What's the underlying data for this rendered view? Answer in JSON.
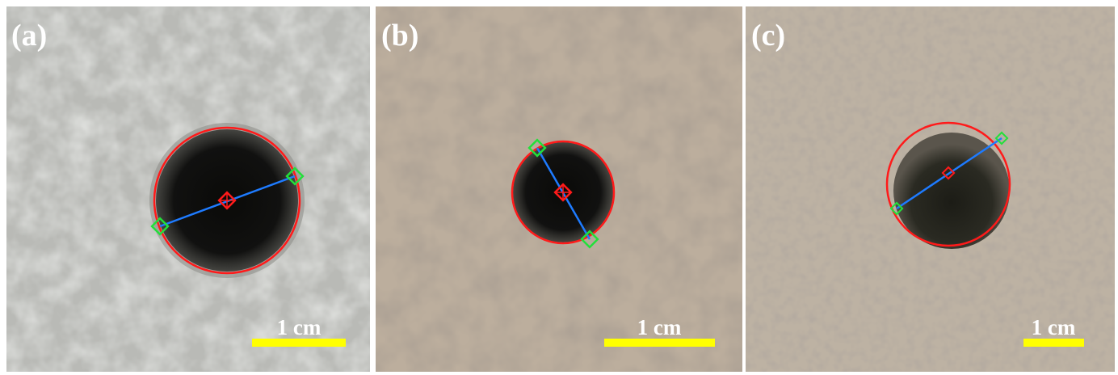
{
  "panels": [
    {
      "label": "(a)",
      "scale_label": "1 cm"
    },
    {
      "label": "(b)",
      "scale_label": "1 cm"
    },
    {
      "label": "(c)",
      "scale_label": "1 cm"
    }
  ]
}
